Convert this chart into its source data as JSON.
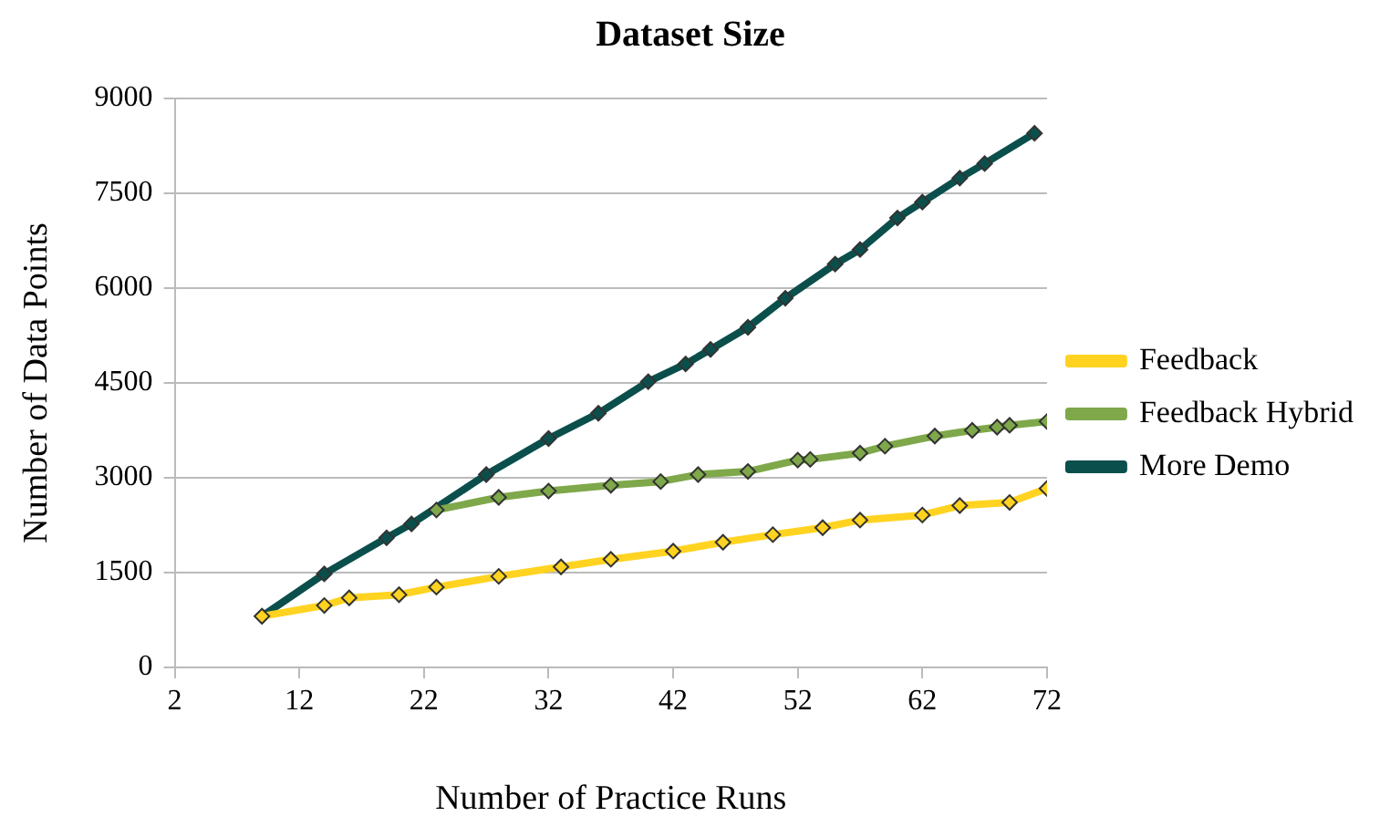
{
  "chart_data": {
    "type": "line",
    "title": "Dataset Size",
    "xlabel": "Number of Practice Runs",
    "ylabel": "Number of Data Points",
    "xlim": [
      2,
      72
    ],
    "xticks": [
      2,
      12,
      22,
      32,
      42,
      52,
      62,
      72
    ],
    "ylim": [
      0,
      9000
    ],
    "yticks": [
      0,
      1500,
      3000,
      4500,
      6000,
      7500,
      9000
    ],
    "grid": "y",
    "legend": "right",
    "marker": "diamond",
    "line_style": "solid",
    "series": [
      {
        "name": "Feedback",
        "color": "#ffd320",
        "x": [
          9,
          14,
          16,
          20,
          23,
          28,
          33,
          37,
          42,
          46,
          50,
          54,
          57,
          62,
          65,
          69,
          72
        ],
        "values": [
          810,
          980,
          1100,
          1150,
          1270,
          1440,
          1590,
          1710,
          1840,
          1980,
          2100,
          2210,
          2330,
          2410,
          2560,
          2610,
          2830
        ]
      },
      {
        "name": "Feedback Hybrid",
        "color": "#7ea84a",
        "x": [
          23,
          28,
          32,
          37,
          41,
          44,
          48,
          52,
          53,
          57,
          59,
          63,
          66,
          68,
          69,
          72
        ],
        "values": [
          2490,
          2690,
          2790,
          2880,
          2940,
          3050,
          3100,
          3280,
          3290,
          3390,
          3500,
          3660,
          3750,
          3800,
          3830,
          3890
        ]
      },
      {
        "name": "More Demo",
        "color": "#0b4f4c",
        "x": [
          9,
          14,
          19,
          21,
          27,
          32,
          36,
          40,
          43,
          45,
          48,
          51,
          55,
          57,
          60,
          62,
          65,
          67,
          71
        ],
        "values": [
          810,
          1480,
          2050,
          2270,
          3050,
          3620,
          4020,
          4520,
          4800,
          5030,
          5380,
          5840,
          6380,
          6610,
          7110,
          7360,
          7740,
          7970,
          8450
        ]
      }
    ]
  }
}
